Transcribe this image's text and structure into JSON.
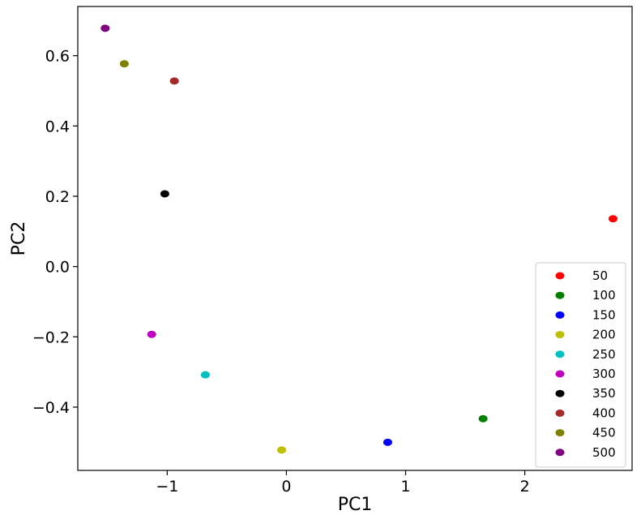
{
  "chart_data": {
    "type": "scatter",
    "title": "",
    "xlabel": "PC1",
    "ylabel": "PC2",
    "xlim": [
      -1.75,
      2.9
    ],
    "ylim": [
      -0.58,
      0.74
    ],
    "xticks": [
      -1,
      0,
      1,
      2
    ],
    "xtick_labels": [
      "−1",
      "0",
      "1",
      "2"
    ],
    "yticks": [
      -0.4,
      -0.2,
      0.0,
      0.2,
      0.4,
      0.6
    ],
    "ytick_labels": [
      "−0.4",
      "−0.2",
      "0.0",
      "0.2",
      "0.4",
      "0.6"
    ],
    "grid": false,
    "legend_position": "lower-right",
    "series": [
      {
        "name": "50",
        "color": "#ff0000",
        "x": 2.74,
        "y": 0.136
      },
      {
        "name": "100",
        "color": "#008000",
        "x": 1.65,
        "y": -0.433
      },
      {
        "name": "150",
        "color": "#0000ff",
        "x": 0.85,
        "y": -0.5
      },
      {
        "name": "200",
        "color": "#bfbf00",
        "x": -0.04,
        "y": -0.522
      },
      {
        "name": "250",
        "color": "#00bfbf",
        "x": -0.68,
        "y": -0.308
      },
      {
        "name": "300",
        "color": "#bf00bf",
        "x": -1.13,
        "y": -0.193
      },
      {
        "name": "350",
        "color": "#000000",
        "x": -1.02,
        "y": 0.207
      },
      {
        "name": "400",
        "color": "#a52a2a",
        "x": -0.94,
        "y": 0.528
      },
      {
        "name": "450",
        "color": "#808000",
        "x": -1.36,
        "y": 0.577
      },
      {
        "name": "500",
        "color": "#800080",
        "x": -1.52,
        "y": 0.678
      }
    ]
  }
}
